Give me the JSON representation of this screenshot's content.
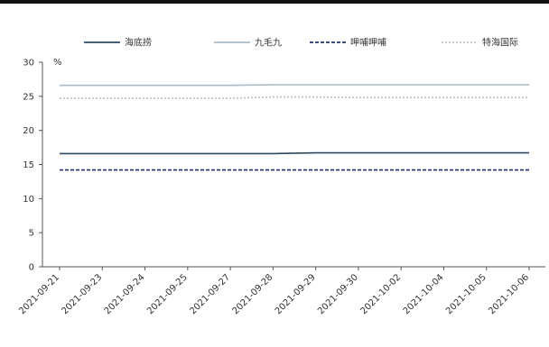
{
  "chart_data": {
    "type": "line",
    "ylabel": "%",
    "ylim": [
      0,
      30
    ],
    "yticks": [
      0,
      5,
      10,
      15,
      20,
      25,
      30
    ],
    "categories": [
      "2021-09-21",
      "2021-09-23",
      "2021-09-24",
      "2021-09-25",
      "2021-09-27",
      "2021-09-28",
      "2021-09-29",
      "2021-09-30",
      "2021-10-02",
      "2021-10-04",
      "2021-10-05",
      "2021-10-06"
    ],
    "series": [
      {
        "name": "海底捞",
        "color": "#2d4a64",
        "style": "solid",
        "values": [
          16.6,
          16.6,
          16.6,
          16.6,
          16.6,
          16.6,
          16.7,
          16.7,
          16.7,
          16.7,
          16.7,
          16.7
        ]
      },
      {
        "name": "九毛九",
        "color": "#a9b9c6",
        "style": "solid",
        "values": [
          26.6,
          26.6,
          26.6,
          26.6,
          26.6,
          26.7,
          26.7,
          26.7,
          26.7,
          26.7,
          26.7,
          26.7
        ]
      },
      {
        "name": "呷哺呷哺",
        "color": "#22306e",
        "style": "dashed",
        "values": [
          14.2,
          14.2,
          14.2,
          14.2,
          14.2,
          14.2,
          14.2,
          14.2,
          14.2,
          14.2,
          14.2,
          14.2
        ]
      },
      {
        "name": "特海国际",
        "color": "#b7c2cc",
        "style": "dotted",
        "values": [
          24.7,
          24.7,
          24.7,
          24.7,
          24.7,
          24.9,
          24.9,
          24.8,
          24.8,
          24.8,
          24.8,
          24.8
        ]
      }
    ],
    "grid": false,
    "legend_position": "top"
  }
}
